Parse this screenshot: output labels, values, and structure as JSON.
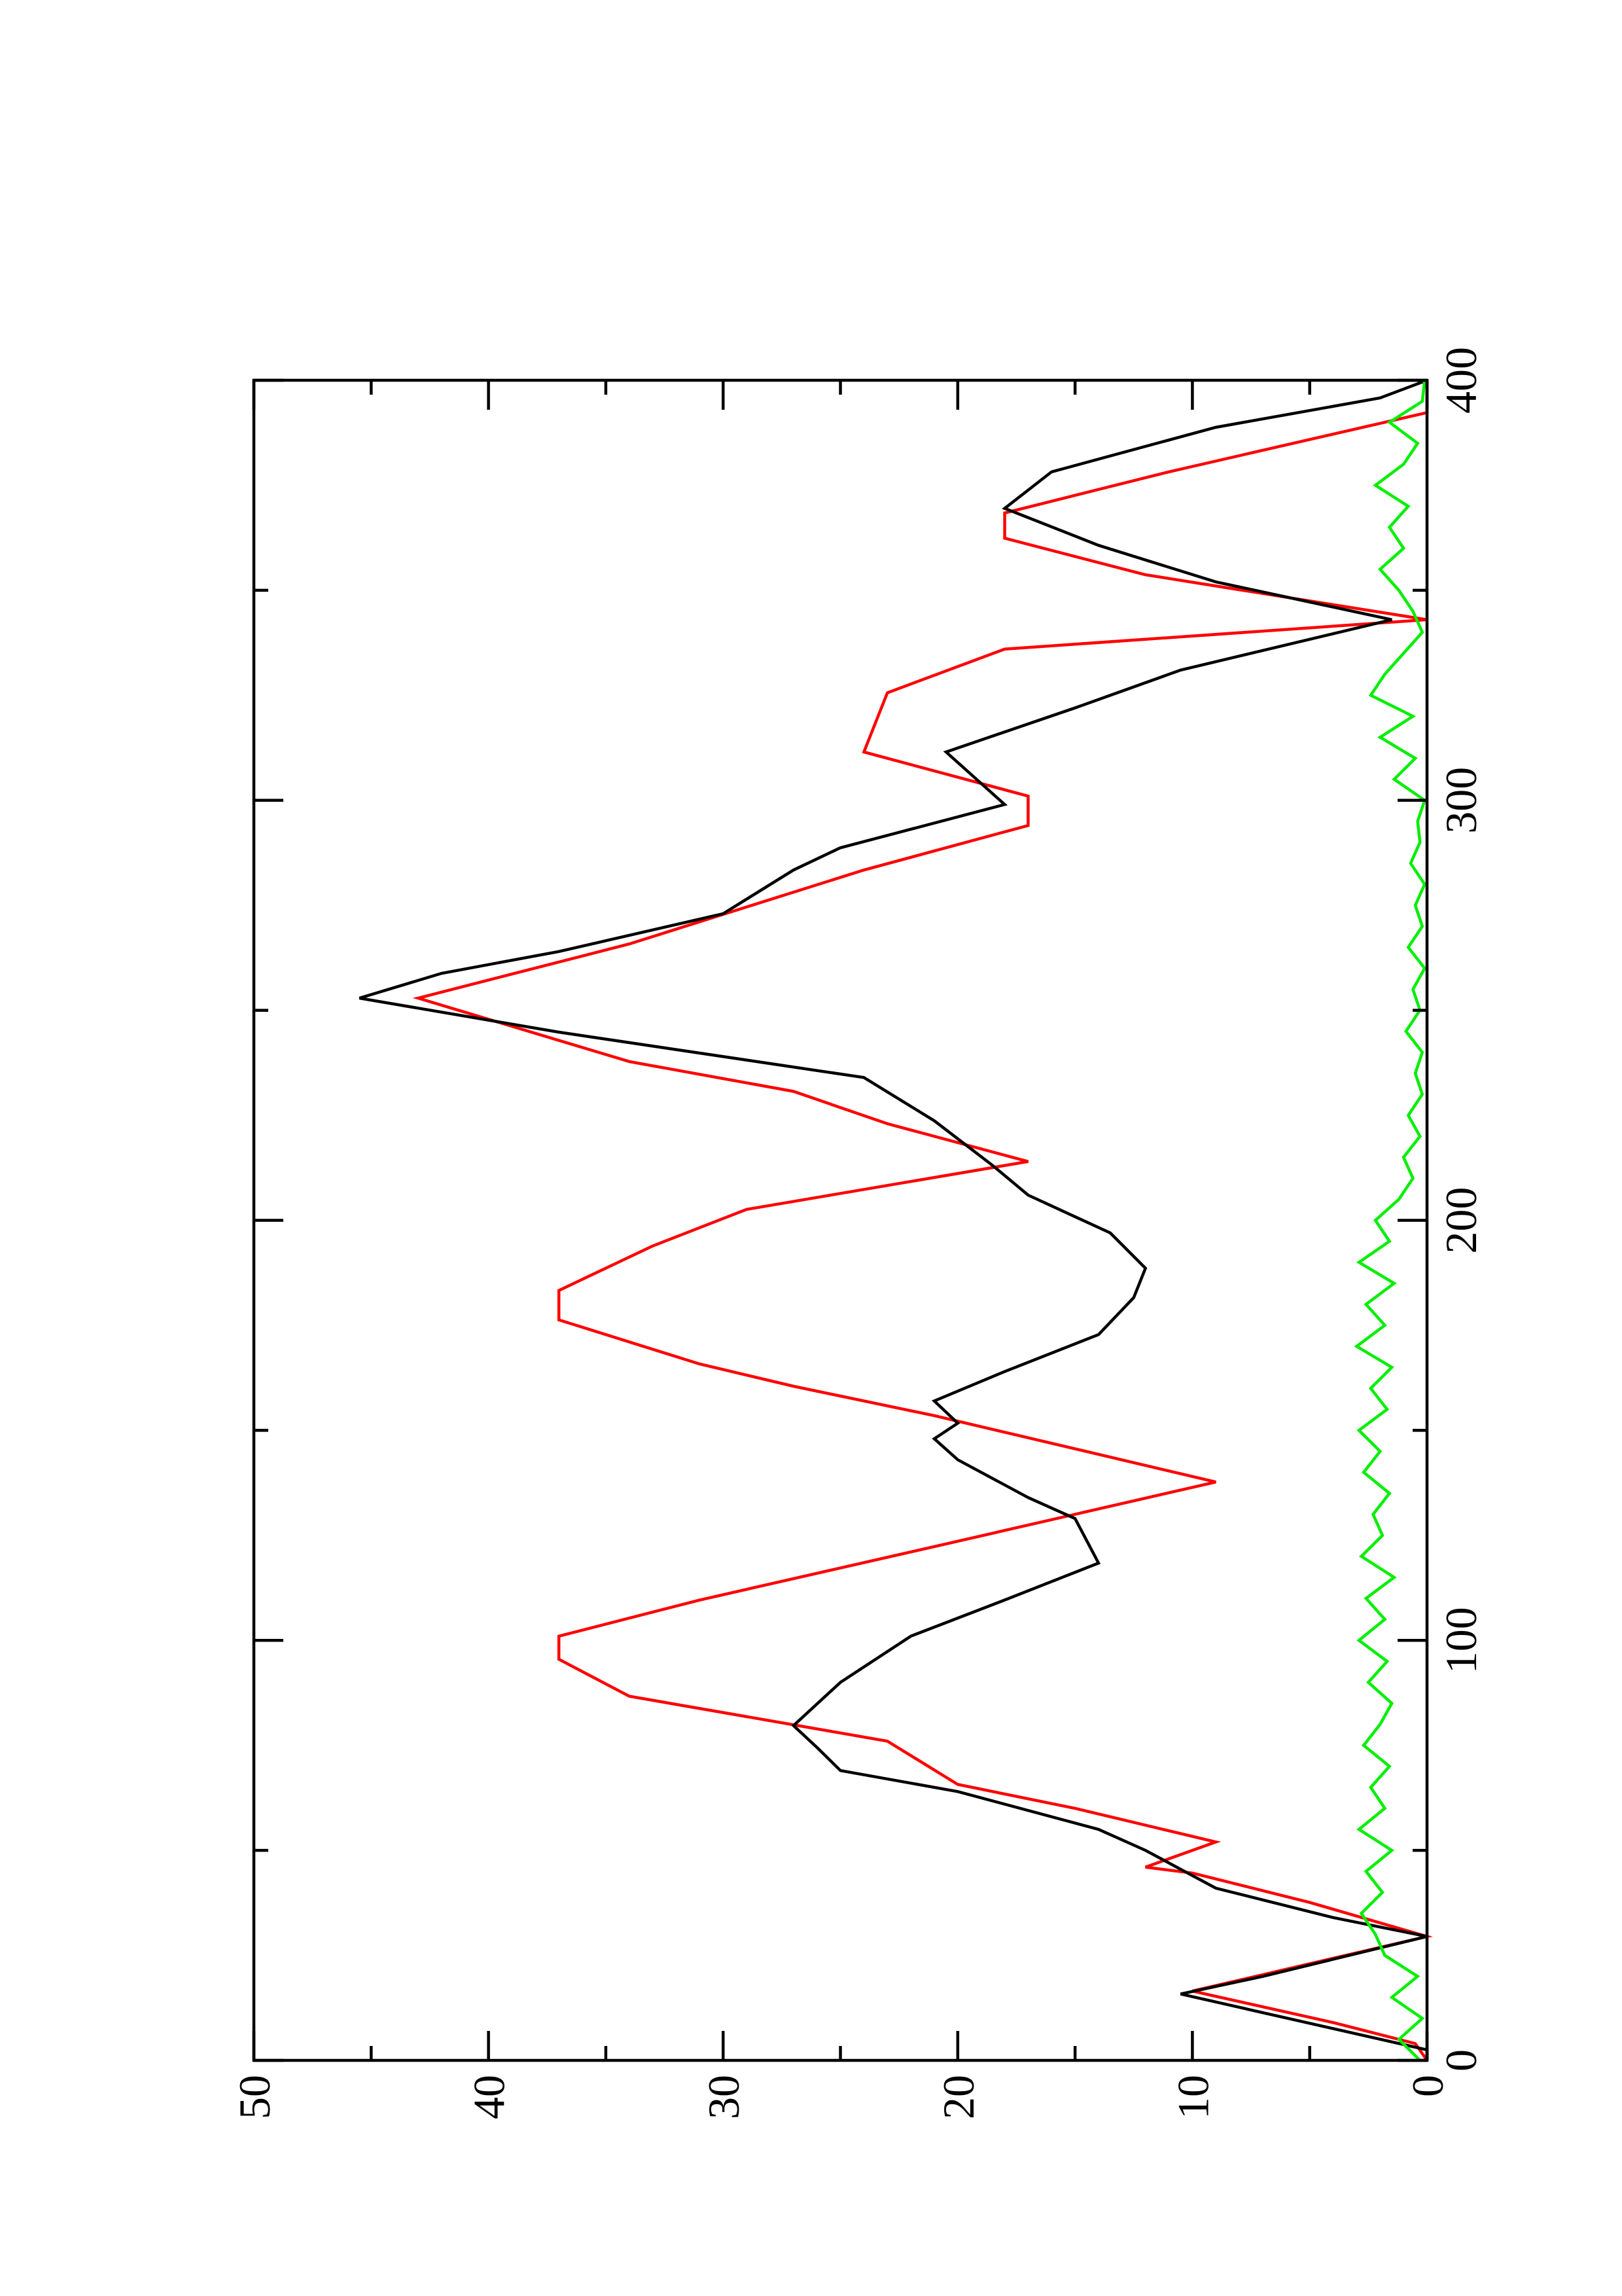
{
  "chart_data": {
    "type": "line",
    "xlim": [
      0,
      400
    ],
    "xticks": [
      0,
      100,
      200,
      300,
      400
    ],
    "xminorticks": [
      50,
      150,
      250,
      350
    ],
    "ylim": [
      0,
      50
    ],
    "yticks": [
      0,
      10,
      20,
      30,
      40,
      50
    ],
    "yminorticks": [
      5,
      15,
      25,
      35,
      45
    ],
    "grid": false,
    "series": [
      {
        "color": "#ff0000",
        "x": [
          0,
          4,
          9,
          16.5,
          29.5,
          37.6,
          44.6,
          46,
          52,
          60,
          65.7,
          76,
          86.7,
          95.5,
          101,
          109.6,
          123.6,
          137.7,
          153.5,
          160.5,
          165.8,
          176.3,
          183.3,
          193.9,
          202.6,
          214,
          223,
          230.7,
          237.8,
          252.9,
          265.8,
          283.4,
          294,
          301,
          311.5,
          325.6,
          336,
          343,
          353.7,
          362.4,
          368.4,
          378.2,
          392.3,
          400
        ],
        "values": [
          0,
          0.5,
          4,
          10,
          0,
          5,
          10,
          12,
          9,
          15,
          20,
          23,
          34,
          37,
          37,
          31,
          20,
          9,
          21,
          27,
          31,
          37,
          37,
          33,
          29,
          17,
          23,
          27,
          34,
          43,
          34,
          24,
          17,
          17,
          24,
          23,
          18,
          0,
          12,
          18,
          18,
          11,
          0,
          0
        ]
      },
      {
        "color": "#000000",
        "x": [
          0,
          2.5,
          15.8,
          20,
          29.5,
          34,
          41,
          50,
          55,
          64,
          69,
          74.5,
          79.7,
          90,
          101,
          109.6,
          118.4,
          129,
          134,
          143,
          148,
          151.7,
          157,
          164,
          172.8,
          181.6,
          188.6,
          197,
          206,
          213,
          223.7,
          234,
          244.8,
          252.9,
          258.8,
          264,
          273,
          283.4,
          288.7,
          299,
          311.5,
          322,
          331,
          343,
          352,
          360.7,
          369.5,
          378.2,
          388.8,
          395.8,
          400
        ],
        "values": [
          0,
          0,
          10.5,
          7,
          0,
          4,
          9,
          12,
          14,
          20,
          25,
          26,
          27,
          25,
          22,
          18,
          14,
          15,
          17,
          20,
          21,
          20,
          21,
          18,
          14,
          12.5,
          12,
          13.5,
          17,
          18.5,
          21,
          24,
          37,
          45.5,
          42,
          37,
          30,
          27,
          25,
          18,
          20.5,
          15,
          10.5,
          1.5,
          9,
          14,
          18,
          16,
          9,
          2,
          0
        ]
      },
      {
        "color": "#00ee00",
        "x": [
          0,
          5,
          10,
          15,
          20,
          25,
          30,
          35,
          40,
          45,
          50,
          55,
          60,
          65,
          70,
          75,
          80,
          85,
          90,
          95,
          100,
          105,
          110,
          115,
          120,
          125,
          130,
          135,
          140,
          145,
          150,
          155,
          160,
          165,
          170,
          175,
          180,
          185,
          190,
          195,
          200,
          205,
          210,
          215,
          220,
          225,
          230,
          235,
          240,
          245,
          250,
          255,
          260,
          265,
          270,
          275,
          280,
          285,
          290,
          295,
          300,
          305,
          310,
          315,
          320,
          325,
          330,
          335,
          340,
          345,
          350,
          355,
          360,
          365,
          370,
          375,
          380,
          385,
          390,
          395,
          400
        ],
        "values": [
          0.3,
          1.2,
          0.2,
          1.5,
          0.4,
          1.8,
          2.2,
          2.8,
          1.9,
          2.6,
          1.5,
          2.9,
          1.8,
          2.4,
          1.6,
          2.7,
          2.0,
          1.5,
          2.5,
          1.7,
          2.9,
          1.8,
          2.6,
          1.4,
          2.8,
          1.9,
          2.3,
          1.6,
          2.7,
          2.0,
          2.9,
          1.7,
          2.4,
          1.5,
          3.0,
          1.8,
          2.6,
          1.4,
          2.9,
          1.6,
          2.2,
          1.2,
          0.6,
          1.0,
          0.3,
          0.8,
          0.2,
          0.5,
          0.2,
          0.9,
          0.3,
          0.6,
          0.1,
          0.8,
          0.2,
          0.5,
          0.1,
          0.7,
          0.3,
          0.4,
          0.1,
          1.4,
          0.5,
          2.0,
          0.6,
          2.4,
          1.8,
          1.0,
          0.2,
          0.6,
          1.2,
          2.0,
          1.0,
          1.6,
          0.8,
          2.2,
          1.0,
          0.4,
          1.6,
          0.2,
          0.1
        ]
      }
    ]
  }
}
